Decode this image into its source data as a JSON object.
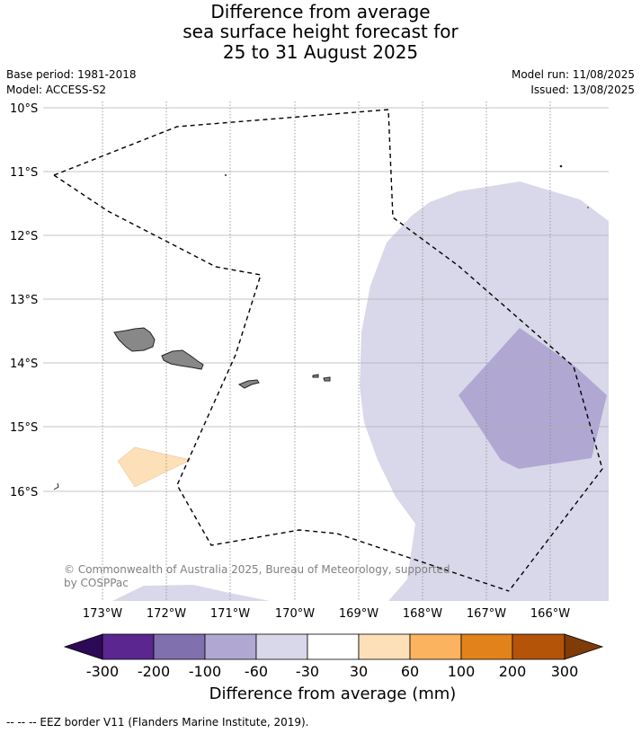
{
  "title": {
    "line1": "Difference from average",
    "line2": "sea surface height forecast for",
    "line3": "25 to 31 August 2025"
  },
  "meta": {
    "base_period": "Base period: 1981-2018",
    "model": "Model: ACCESS-S2",
    "model_run": "Model run: 11/08/2025",
    "issued": "Issued: 13/08/2025"
  },
  "map": {
    "lon_labels": [
      "173°W",
      "172°W",
      "171°W",
      "170°W",
      "169°W",
      "168°W",
      "167°W",
      "166°W"
    ],
    "lat_labels": [
      "10°S",
      "11°S",
      "12°S",
      "13°S",
      "14°S",
      "15°S",
      "16°S"
    ],
    "copyright_line1": "© Commonwealth of Australia 2025, Bureau of Meteorology, supported",
    "copyright_line2": "by COSPPac",
    "land_color": "#888888",
    "eez_style": "dashed black"
  },
  "colorbar": {
    "ticks": [
      "-300",
      "-200",
      "-100",
      "-60",
      "-30",
      "30",
      "60",
      "100",
      "200",
      "300"
    ],
    "colors": [
      "#2d0a57",
      "#5b2690",
      "#8170ae",
      "#b0a8d2",
      "#d8d8ea",
      "#ffffff",
      "#fde0b7",
      "#fbb35f",
      "#e2821a",
      "#b45409",
      "#7f3b08"
    ],
    "label": "Difference from average (mm)"
  },
  "footnote": "--  --  -- EEZ border V11 (Flanders Marine Institute, 2019)."
}
